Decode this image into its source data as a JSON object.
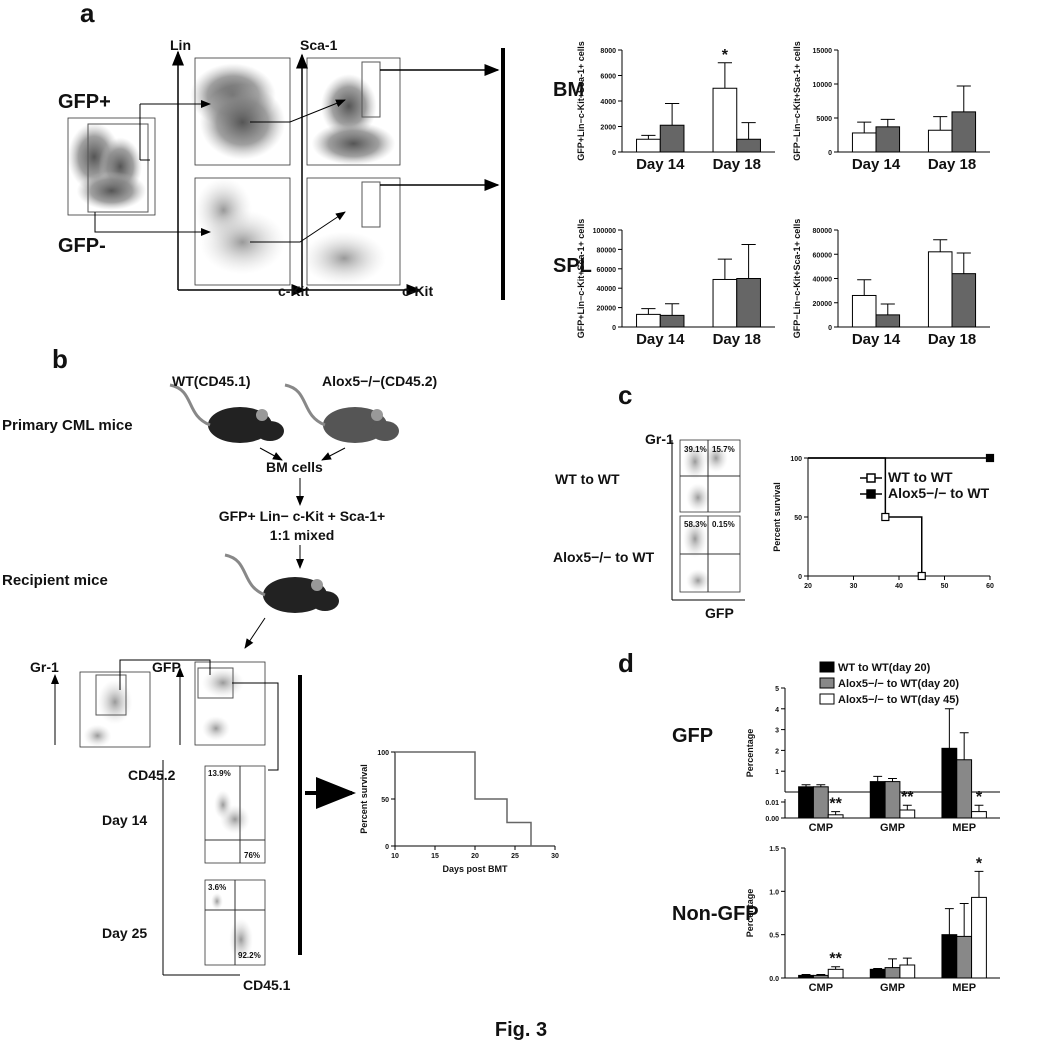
{
  "figure": {
    "caption": "Fig. 3",
    "panel_a": {
      "letter": "a",
      "gate_pos": "GFP+",
      "gate_neg": "GFP-",
      "axis_lin": "Lin",
      "axis_sca": "Sca-1",
      "axis_ckit_1": "c-Kit",
      "axis_ckit_2": "c-Kit",
      "row_bm": "BM",
      "row_spl": "SPL"
    },
    "panel_b": {
      "letter": "b",
      "donor_wt": "WT(CD45.1)",
      "donor_ko": "Alox5−/−(CD45.2)",
      "primary": "Primary CML mice",
      "bm_cells": "BM cells",
      "sorted": "GFP+ Lin− c-Kit + Sca-1+",
      "mixed": "1:1 mixed",
      "recipient": "Recipient mice",
      "gr1": "Gr-1",
      "gfp": "GFP",
      "cd452": "CD45.2",
      "cd451": "CD45.1",
      "day14": "Day 14",
      "day25": "Day 25",
      "d14_ul": "13.9%",
      "d14_lr": "76%",
      "d25_ul": "3.6%",
      "d25_lr": "92.2%"
    },
    "panel_c": {
      "letter": "c",
      "gr1": "Gr-1",
      "gfp": "GFP",
      "row_wt": "WT to WT",
      "row_ko": "Alox5−/− to WT",
      "wt_ul": "39.1%",
      "wt_ur": "15.7%",
      "ko_ul": "58.3%",
      "ko_ur": "0.15%"
    },
    "panel_d": {
      "letter": "d",
      "row_gfp": "GFP",
      "row_nongfp": "Non-GFP"
    }
  },
  "chart_data": [
    {
      "type": "bar",
      "ylabel": "GFP+Lin−c-Kit+Sca-1+ cells",
      "categories": [
        "Day 14",
        "Day 18"
      ],
      "series": [
        {
          "color": "#ffffff",
          "values": [
            1000,
            5000
          ],
          "errors": [
            300,
            2000
          ],
          "annotations": [
            null,
            "*"
          ]
        },
        {
          "color": "#666666",
          "values": [
            2100,
            1000
          ],
          "errors": [
            1700,
            1300
          ]
        }
      ],
      "ylim": [
        0,
        8000
      ],
      "yticks": [
        0,
        2000,
        4000,
        6000,
        8000
      ]
    },
    {
      "type": "bar",
      "ylabel": "GFP−Lin−c-Kit+Sca-1+ cells",
      "categories": [
        "Day 14",
        "Day 18"
      ],
      "series": [
        {
          "color": "#ffffff",
          "values": [
            2800,
            3200
          ],
          "errors": [
            1600,
            2000
          ]
        },
        {
          "color": "#666666",
          "values": [
            3700,
            5900
          ],
          "errors": [
            1100,
            3800
          ]
        }
      ],
      "ylim": [
        0,
        15000
      ],
      "yticks": [
        0,
        5000,
        10000,
        15000
      ]
    },
    {
      "type": "bar",
      "ylabel": "GFP+Lin−c-Kit+Sca-1+ cells",
      "categories": [
        "Day 14",
        "Day 18"
      ],
      "series": [
        {
          "color": "#ffffff",
          "values": [
            13000,
            49000
          ],
          "errors": [
            6000,
            21000
          ]
        },
        {
          "color": "#666666",
          "values": [
            12000,
            50000
          ],
          "errors": [
            12000,
            35000
          ]
        }
      ],
      "ylim": [
        0,
        100000
      ],
      "yticks": [
        0,
        20000,
        40000,
        60000,
        80000,
        100000
      ]
    },
    {
      "type": "bar",
      "ylabel": "GFP−Lin−c-Kit+Sca-1+ cells",
      "categories": [
        "Day 14",
        "Day 18"
      ],
      "series": [
        {
          "color": "#ffffff",
          "values": [
            26000,
            62000
          ],
          "errors": [
            13000,
            10000
          ]
        },
        {
          "color": "#666666",
          "values": [
            10000,
            44000
          ],
          "errors": [
            9000,
            17000
          ]
        }
      ],
      "ylim": [
        0,
        80000
      ],
      "yticks": [
        0,
        20000,
        40000,
        60000,
        80000
      ]
    },
    {
      "type": "line",
      "ylabel": "Percent survival",
      "series": [
        {
          "name": "WT to WT",
          "color": "#000000",
          "marker": "open",
          "x": [
            20,
            37,
            37,
            45,
            45
          ],
          "values": [
            100,
            100,
            50,
            50,
            0
          ]
        },
        {
          "name": "Alox5−/− to WT",
          "color": "#000000",
          "marker": "filled",
          "x": [
            20,
            60
          ],
          "values": [
            100,
            100
          ]
        }
      ],
      "xlim": [
        20,
        60
      ],
      "xticks": [
        20,
        30,
        40,
        50,
        60
      ],
      "ylim": [
        0,
        100
      ],
      "yticks": [
        0,
        50,
        100
      ]
    },
    {
      "type": "line",
      "ylabel": "Percent survival",
      "xlabel": "Days post BMT",
      "series": [
        {
          "color": "#666666",
          "x": [
            10,
            20,
            20,
            24,
            24,
            27,
            27
          ],
          "values": [
            100,
            100,
            50,
            50,
            25,
            25,
            0
          ]
        }
      ],
      "xlim": [
        10,
        30
      ],
      "xticks": [
        10,
        15,
        20,
        25,
        30
      ],
      "ylim": [
        0,
        100
      ],
      "yticks": [
        0,
        50,
        100
      ]
    },
    {
      "type": "bar",
      "ylabel": "Percentage",
      "categories": [
        "CMP",
        "GMP",
        "MEP"
      ],
      "series": [
        {
          "name": "WT to WT(day 20)",
          "color": "#000000",
          "values": [
            0.25,
            0.5,
            2.1
          ],
          "errors": [
            0.1,
            0.25,
            1.9
          ]
        },
        {
          "name": "Alox5−/− to WT(day 20)",
          "color": "#888888",
          "values": [
            0.25,
            0.5,
            1.55
          ],
          "errors": [
            0.1,
            0.15,
            1.3
          ]
        },
        {
          "name": "Alox5−/− to WT(day 45)",
          "color": "#ffffff",
          "values": [
            0.002,
            0.005,
            0.004
          ],
          "errors": [
            0.002,
            0.003,
            0.004
          ],
          "annotations": [
            "**",
            "**",
            "*"
          ]
        }
      ],
      "ylim": [
        0,
        5
      ],
      "yticks": [
        1,
        2,
        3,
        4,
        5
      ],
      "y_break_lim": [
        0,
        0.01
      ],
      "y_break_ticks": [
        {
          "value": 0,
          "label": "0.00"
        },
        0.01
      ]
    },
    {
      "type": "bar",
      "ylabel": "Percentage",
      "categories": [
        "CMP",
        "GMP",
        "MEP"
      ],
      "series": [
        {
          "color": "#000000",
          "values": [
            0.03,
            0.1,
            0.5
          ],
          "errors": [
            0.01,
            0.01,
            0.3
          ]
        },
        {
          "color": "#888888",
          "values": [
            0.03,
            0.12,
            0.48
          ],
          "errors": [
            0.01,
            0.1,
            0.38
          ]
        },
        {
          "color": "#ffffff",
          "values": [
            0.1,
            0.15,
            0.93
          ],
          "errors": [
            0.03,
            0.08,
            0.3
          ],
          "annotations": [
            "**",
            null,
            "*"
          ]
        }
      ],
      "ylim": [
        0,
        1.5
      ],
      "yticks": [
        {
          "value": 0,
          "label": "0.0"
        },
        0.5,
        {
          "value": 1,
          "label": "1.0"
        },
        1.5
      ]
    }
  ]
}
